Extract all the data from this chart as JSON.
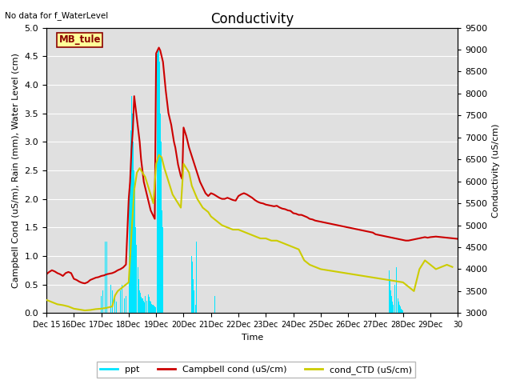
{
  "title": "Conductivity",
  "top_left_text": "No data for f_WaterLevel",
  "station_label": "MB_tule",
  "xlabel": "Time",
  "ylabel_left": "Campbell Cond (uS/m), Rain (mm), Water Level (cm)",
  "ylabel_right": "Conductivity (uS/cm)",
  "ylim_left": [
    0.0,
    5.0
  ],
  "ylim_right": [
    3000,
    9500
  ],
  "bg_color": "#e0e0e0",
  "title_fontsize": 12,
  "axis_label_fontsize": 8,
  "tick_label_fontsize": 8,
  "legend_items": [
    "ppt",
    "Campbell cond (uS/cm)",
    "cond_CTD (uS/cm)"
  ],
  "ppt_color": "#00e5ff",
  "campbell_color": "#cc0000",
  "ctd_color": "#cccc00",
  "campbell_lw": 1.5,
  "ctd_lw": 1.5,
  "ppt_times_raw": [
    17.0,
    17.05,
    17.1,
    17.15,
    17.2,
    17.25,
    17.3,
    17.35,
    17.4,
    17.45,
    17.5,
    17.55,
    17.6,
    17.65,
    17.7,
    17.75,
    17.8,
    17.85,
    17.9,
    17.95,
    18.0,
    18.02,
    18.04,
    18.06,
    18.08,
    18.1,
    18.12,
    18.14,
    18.16,
    18.18,
    18.2,
    18.22,
    18.24,
    18.26,
    18.28,
    18.3,
    18.32,
    18.34,
    18.36,
    18.38,
    18.4,
    18.42,
    18.44,
    18.46,
    18.48,
    18.5,
    18.52,
    18.54,
    18.56,
    18.58,
    18.6,
    18.62,
    18.64,
    18.66,
    18.68,
    18.7,
    18.72,
    18.74,
    18.76,
    18.78,
    18.8,
    18.82,
    18.84,
    18.86,
    18.88,
    18.9,
    18.92,
    18.94,
    18.96,
    18.98,
    19.0,
    19.02,
    19.04,
    19.06,
    19.08,
    19.1,
    19.12,
    19.14,
    19.16,
    19.18,
    19.2,
    19.22,
    19.24,
    20.3,
    20.32,
    20.34,
    20.36,
    20.38,
    20.4,
    20.42,
    20.44,
    20.46,
    21.1,
    21.12,
    21.14,
    21.5,
    27.5,
    27.52,
    27.54,
    27.56,
    27.58,
    27.6,
    27.62,
    27.64,
    27.7,
    27.72,
    27.74,
    27.76,
    27.78,
    27.8,
    27.82,
    27.84,
    27.86,
    27.88,
    27.9,
    27.92,
    27.94,
    27.96,
    27.98,
    28.0
  ],
  "ppt_values_raw": [
    0.3,
    0.4,
    0.5,
    1.25,
    1.25,
    0.8,
    0.3,
    0.5,
    0.4,
    0.3,
    0.3,
    0.2,
    0.4,
    0.35,
    0.4,
    0.5,
    0.3,
    0.25,
    0.3,
    0.25,
    1.75,
    2.0,
    2.5,
    2.8,
    3.2,
    3.8,
    3.8,
    3.5,
    3.0,
    2.7,
    2.5,
    2.2,
    1.8,
    1.5,
    1.2,
    1.2,
    1.0,
    0.8,
    0.6,
    0.5,
    0.4,
    0.35,
    0.3,
    0.28,
    0.25,
    0.3,
    0.25,
    0.22,
    0.2,
    0.18,
    0.3,
    0.28,
    0.25,
    0.22,
    0.3,
    0.35,
    0.32,
    0.28,
    0.25,
    0.22,
    0.2,
    0.18,
    0.16,
    0.14,
    0.12,
    0.15,
    0.13,
    0.12,
    0.11,
    0.1,
    4.8,
    4.7,
    4.55,
    4.6,
    4.5,
    4.6,
    4.4,
    4.0,
    3.5,
    3.0,
    2.0,
    1.8,
    1.5,
    1.0,
    0.9,
    0.75,
    0.6,
    0.4,
    0.25,
    0.2,
    0.15,
    1.25,
    1.0,
    0.6,
    0.3,
    0.3,
    0.75,
    0.6,
    0.5,
    0.4,
    0.3,
    0.25,
    0.2,
    0.15,
    0.5,
    1.5,
    1.25,
    0.8,
    0.5,
    0.3,
    0.25,
    0.2,
    0.18,
    0.15,
    0.12,
    0.1,
    0.08,
    0.06,
    0.05,
    0.04
  ],
  "campbell_times_raw": [
    15.0,
    15.1,
    15.2,
    15.3,
    15.4,
    15.5,
    15.6,
    15.7,
    15.8,
    15.9,
    16.0,
    16.1,
    16.2,
    16.3,
    16.4,
    16.5,
    16.6,
    16.7,
    16.8,
    16.9,
    17.0,
    17.1,
    17.2,
    17.3,
    17.4,
    17.5,
    17.6,
    17.7,
    17.8,
    17.9,
    18.0,
    18.05,
    18.1,
    18.15,
    18.2,
    18.25,
    18.3,
    18.35,
    18.4,
    18.45,
    18.5,
    18.55,
    18.6,
    18.65,
    18.7,
    18.75,
    18.8,
    18.85,
    18.9,
    18.95,
    19.0,
    19.05,
    19.1,
    19.15,
    19.2,
    19.25,
    19.3,
    19.35,
    19.4,
    19.45,
    19.5,
    19.55,
    19.6,
    19.65,
    19.7,
    19.75,
    19.8,
    19.85,
    19.9,
    19.95,
    20.0,
    20.1,
    20.2,
    20.3,
    20.4,
    20.5,
    20.6,
    20.7,
    20.8,
    20.9,
    21.0,
    21.1,
    21.2,
    21.3,
    21.4,
    21.5,
    21.6,
    21.7,
    21.8,
    21.9,
    22.0,
    22.1,
    22.2,
    22.3,
    22.4,
    22.5,
    22.6,
    22.7,
    22.8,
    22.9,
    23.0,
    23.1,
    23.2,
    23.3,
    23.4,
    23.5,
    23.6,
    23.7,
    23.8,
    23.9,
    24.0,
    24.1,
    24.2,
    24.3,
    24.4,
    24.5,
    24.6,
    24.7,
    24.8,
    24.9,
    25.0,
    25.1,
    25.2,
    25.3,
    25.4,
    25.5,
    25.6,
    25.7,
    25.8,
    25.9,
    26.0,
    26.1,
    26.2,
    26.3,
    26.4,
    26.5,
    26.6,
    26.7,
    26.8,
    26.9,
    27.0,
    27.1,
    27.2,
    27.3,
    27.4,
    27.5,
    27.6,
    27.7,
    27.8,
    27.9,
    28.0,
    28.1,
    28.2,
    28.3,
    28.4,
    28.5,
    28.6,
    28.7,
    28.8,
    28.9,
    29.0,
    29.2,
    29.4,
    29.6,
    29.8,
    30.0
  ],
  "campbell_values_raw": [
    0.68,
    0.72,
    0.75,
    0.73,
    0.7,
    0.68,
    0.65,
    0.7,
    0.72,
    0.7,
    0.6,
    0.58,
    0.55,
    0.53,
    0.52,
    0.54,
    0.58,
    0.6,
    0.62,
    0.63,
    0.65,
    0.66,
    0.68,
    0.69,
    0.7,
    0.72,
    0.75,
    0.77,
    0.8,
    0.85,
    2.0,
    2.3,
    2.85,
    3.2,
    3.8,
    3.6,
    3.4,
    3.2,
    3.0,
    2.7,
    2.5,
    2.3,
    2.2,
    2.1,
    2.0,
    1.9,
    1.8,
    1.75,
    1.7,
    1.65,
    4.55,
    4.6,
    4.65,
    4.6,
    4.5,
    4.4,
    4.15,
    3.9,
    3.7,
    3.5,
    3.4,
    3.3,
    3.15,
    3.0,
    2.9,
    2.75,
    2.6,
    2.5,
    2.4,
    2.35,
    3.25,
    3.1,
    2.9,
    2.75,
    2.6,
    2.45,
    2.3,
    2.2,
    2.1,
    2.05,
    2.1,
    2.08,
    2.05,
    2.02,
    2.0,
    2.0,
    2.02,
    2.0,
    1.98,
    1.97,
    2.05,
    2.08,
    2.1,
    2.08,
    2.05,
    2.02,
    1.98,
    1.95,
    1.93,
    1.92,
    1.9,
    1.89,
    1.88,
    1.87,
    1.88,
    1.85,
    1.83,
    1.82,
    1.8,
    1.79,
    1.75,
    1.74,
    1.72,
    1.72,
    1.7,
    1.68,
    1.65,
    1.64,
    1.62,
    1.61,
    1.6,
    1.59,
    1.58,
    1.57,
    1.56,
    1.55,
    1.54,
    1.53,
    1.52,
    1.51,
    1.5,
    1.49,
    1.48,
    1.47,
    1.46,
    1.45,
    1.44,
    1.43,
    1.42,
    1.41,
    1.38,
    1.37,
    1.36,
    1.35,
    1.34,
    1.33,
    1.32,
    1.31,
    1.3,
    1.29,
    1.28,
    1.27,
    1.27,
    1.28,
    1.29,
    1.3,
    1.31,
    1.32,
    1.33,
    1.32,
    1.33,
    1.34,
    1.33,
    1.32,
    1.31,
    1.3
  ],
  "ctd_times_raw": [
    15.0,
    15.2,
    15.4,
    15.6,
    15.8,
    16.0,
    16.2,
    16.4,
    16.6,
    16.8,
    17.0,
    17.2,
    17.4,
    17.5,
    17.6,
    17.8,
    18.0,
    18.1,
    18.2,
    18.3,
    18.4,
    18.5,
    18.6,
    18.7,
    18.8,
    18.9,
    19.0,
    19.1,
    19.2,
    19.3,
    19.4,
    19.5,
    19.6,
    19.7,
    19.8,
    19.9,
    20.0,
    20.2,
    20.3,
    20.5,
    20.7,
    20.9,
    21.0,
    21.2,
    21.4,
    21.6,
    21.8,
    22.0,
    22.2,
    22.4,
    22.6,
    22.8,
    23.0,
    23.2,
    23.4,
    23.6,
    23.8,
    24.0,
    24.2,
    24.4,
    24.6,
    24.8,
    25.0,
    25.2,
    25.4,
    25.6,
    25.8,
    26.0,
    26.2,
    26.4,
    26.6,
    26.8,
    27.0,
    27.2,
    27.4,
    27.6,
    27.8,
    28.0,
    28.2,
    28.4,
    28.6,
    28.8,
    29.0,
    29.2,
    29.4,
    29.6,
    29.8
  ],
  "ctd_values_raw": [
    3300,
    3250,
    3200,
    3180,
    3150,
    3100,
    3080,
    3060,
    3070,
    3090,
    3100,
    3120,
    3150,
    3400,
    3500,
    3600,
    3700,
    4800,
    5800,
    6200,
    6300,
    6200,
    6100,
    5900,
    5700,
    5500,
    6400,
    6600,
    6550,
    6300,
    6100,
    5900,
    5700,
    5600,
    5500,
    5400,
    6400,
    6200,
    5900,
    5600,
    5400,
    5300,
    5200,
    5100,
    5000,
    4950,
    4900,
    4900,
    4850,
    4800,
    4750,
    4700,
    4700,
    4650,
    4650,
    4600,
    4550,
    4500,
    4450,
    4200,
    4100,
    4050,
    4000,
    3980,
    3960,
    3940,
    3920,
    3900,
    3880,
    3860,
    3840,
    3820,
    3800,
    3780,
    3760,
    3740,
    3720,
    3700,
    3600,
    3500,
    4000,
    4200,
    4100,
    4000,
    4050,
    4100,
    4050
  ]
}
